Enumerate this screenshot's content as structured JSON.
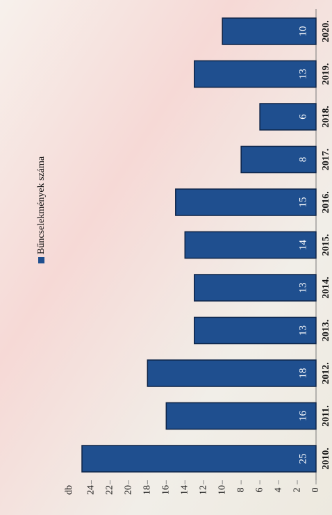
{
  "chart_data": {
    "type": "bar",
    "y_label": "db",
    "legend": "Bűncselekmények száma",
    "categories": [
      "2010.",
      "2011.",
      "2012.",
      "2013.",
      "2014.",
      "2015.",
      "2016.",
      "2017.",
      "2018.",
      "2019.",
      "2020."
    ],
    "values": [
      25,
      16,
      18,
      13,
      13,
      14,
      15,
      8,
      6,
      13,
      10
    ],
    "color": "#1f4f8f",
    "ylim": [
      0,
      25
    ],
    "yticks": [
      0,
      2,
      4,
      6,
      8,
      10,
      12,
      14,
      16,
      18,
      20,
      22,
      24
    ]
  }
}
